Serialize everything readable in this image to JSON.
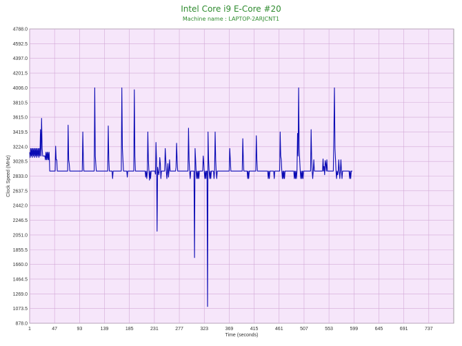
{
  "chart_data": {
    "type": "line",
    "title": "Intel Core i9 E-Core #20",
    "subtitle": "Machine name : LAPTOP-2ARJCNT1",
    "xlabel": "Time (seconds)",
    "ylabel": "Clock Speed (MHz)",
    "xlim": [
      1,
      783
    ],
    "ylim": [
      878.0,
      4788.0
    ],
    "x_ticks": [
      1,
      47,
      93,
      139,
      185,
      231,
      277,
      323,
      369,
      415,
      461,
      507,
      553,
      599,
      645,
      691,
      737
    ],
    "y_ticks": [
      878.0,
      1073.5,
      1269.0,
      1464.5,
      1660.0,
      1855.5,
      2051.0,
      2246.5,
      2442.0,
      2637.5,
      2833.0,
      3028.5,
      3224.0,
      3419.5,
      3615.0,
      3810.5,
      4006.0,
      4201.5,
      4397.0,
      4592.5,
      4788.0
    ],
    "grid": true,
    "colors": {
      "line": "#0a0ab4",
      "plot_background": "#f6e6fa",
      "grid": "#d2a8d6",
      "title": "#2e8b2e"
    },
    "baseline": 2900,
    "series": [
      {
        "values_description_note": "",
        "points": [
          [
            1,
            3150
          ],
          [
            2,
            3080
          ],
          [
            3,
            3200
          ],
          [
            4,
            3100
          ],
          [
            5,
            3200
          ],
          [
            6,
            3080
          ],
          [
            7,
            3200
          ],
          [
            8,
            3100
          ],
          [
            9,
            3200
          ],
          [
            10,
            3080
          ],
          [
            11,
            3200
          ],
          [
            12,
            3100
          ],
          [
            13,
            3200
          ],
          [
            14,
            3080
          ],
          [
            15,
            3200
          ],
          [
            16,
            3100
          ],
          [
            17,
            3200
          ],
          [
            18,
            3080
          ],
          [
            19,
            3200
          ],
          [
            20,
            3100
          ],
          [
            21,
            3450
          ],
          [
            22,
            3100
          ],
          [
            23,
            3600
          ],
          [
            24,
            3200
          ],
          [
            25,
            3100
          ],
          [
            26,
            3100
          ],
          [
            27,
            3100
          ],
          [
            28,
            3100
          ],
          [
            29,
            3100
          ],
          [
            30,
            3050
          ],
          [
            31,
            3150
          ],
          [
            32,
            3050
          ],
          [
            33,
            3150
          ],
          [
            34,
            3050
          ],
          [
            35,
            3150
          ],
          [
            36,
            3050
          ],
          [
            37,
            3150
          ],
          [
            38,
            2900
          ],
          [
            46,
            2900
          ],
          [
            47,
            2900
          ],
          [
            48,
            2900
          ],
          [
            49,
            3230
          ],
          [
            50,
            3050
          ],
          [
            51,
            3050
          ],
          [
            52,
            2900
          ],
          [
            70,
            2900
          ],
          [
            71,
            2900
          ],
          [
            72,
            3510
          ],
          [
            73,
            3050
          ],
          [
            74,
            3000
          ],
          [
            75,
            2900
          ],
          [
            98,
            2900
          ],
          [
            99,
            3420
          ],
          [
            100,
            3050
          ],
          [
            101,
            2900
          ],
          [
            120,
            2900
          ],
          [
            121,
            4006
          ],
          [
            122,
            3100
          ],
          [
            123,
            3000
          ],
          [
            124,
            2900
          ],
          [
            145,
            2900
          ],
          [
            146,
            3500
          ],
          [
            147,
            3050
          ],
          [
            148,
            2900
          ],
          [
            153,
            2900
          ],
          [
            154,
            2800
          ],
          [
            155,
            2900
          ],
          [
            170,
            2900
          ],
          [
            171,
            4006
          ],
          [
            172,
            3200
          ],
          [
            173,
            3050
          ],
          [
            174,
            2900
          ],
          [
            180,
            2900
          ],
          [
            181,
            2820
          ],
          [
            182,
            2900
          ],
          [
            193,
            2900
          ],
          [
            194,
            3980
          ],
          [
            195,
            3100
          ],
          [
            196,
            2900
          ],
          [
            214,
            2900
          ],
          [
            215,
            2820
          ],
          [
            216,
            2900
          ],
          [
            217,
            2800
          ],
          [
            218,
            2900
          ],
          [
            219,
            3420
          ],
          [
            220,
            3050
          ],
          [
            221,
            2900
          ],
          [
            222,
            2780
          ],
          [
            223,
            2900
          ],
          [
            224,
            2800
          ],
          [
            225,
            2900
          ],
          [
            232,
            2900
          ],
          [
            233,
            2860
          ],
          [
            234,
            3280
          ],
          [
            235,
            3050
          ],
          [
            236,
            2100
          ],
          [
            237,
            2950
          ],
          [
            238,
            2900
          ],
          [
            239,
            2850
          ],
          [
            240,
            2900
          ],
          [
            241,
            3080
          ],
          [
            242,
            3000
          ],
          [
            243,
            2800
          ],
          [
            244,
            2900
          ],
          [
            250,
            2900
          ],
          [
            251,
            3200
          ],
          [
            252,
            3050
          ],
          [
            253,
            2900
          ],
          [
            254,
            2800
          ],
          [
            255,
            2900
          ],
          [
            256,
            3000
          ],
          [
            257,
            2820
          ],
          [
            258,
            2900
          ],
          [
            259,
            3050
          ],
          [
            260,
            2900
          ],
          [
            270,
            2900
          ],
          [
            271,
            2950
          ],
          [
            272,
            3270
          ],
          [
            273,
            3050
          ],
          [
            274,
            2900
          ],
          [
            293,
            2900
          ],
          [
            294,
            3470
          ],
          [
            295,
            3050
          ],
          [
            296,
            2900
          ],
          [
            297,
            2800
          ],
          [
            298,
            2900
          ],
          [
            304,
            2900
          ],
          [
            305,
            1750
          ],
          [
            306,
            3200
          ],
          [
            307,
            3050
          ],
          [
            308,
            2900
          ],
          [
            309,
            2800
          ],
          [
            310,
            2900
          ],
          [
            311,
            2800
          ],
          [
            312,
            2900
          ],
          [
            313,
            2800
          ],
          [
            314,
            2900
          ],
          [
            320,
            2900
          ],
          [
            321,
            3100
          ],
          [
            322,
            3020
          ],
          [
            323,
            2900
          ],
          [
            324,
            2800
          ],
          [
            325,
            2900
          ],
          [
            326,
            2800
          ],
          [
            327,
            2900
          ],
          [
            328,
            2900
          ],
          [
            329,
            1100
          ],
          [
            330,
            3420
          ],
          [
            331,
            3050
          ],
          [
            332,
            2900
          ],
          [
            333,
            2800
          ],
          [
            334,
            2900
          ],
          [
            335,
            2800
          ],
          [
            336,
            2900
          ],
          [
            340,
            2900
          ],
          [
            341,
            2800
          ],
          [
            342,
            2900
          ],
          [
            343,
            3420
          ],
          [
            344,
            3050
          ],
          [
            345,
            2900
          ],
          [
            346,
            2800
          ],
          [
            347,
            2900
          ],
          [
            369,
            2900
          ],
          [
            370,
            3200
          ],
          [
            371,
            3050
          ],
          [
            372,
            2900
          ],
          [
            393,
            2900
          ],
          [
            394,
            3330
          ],
          [
            395,
            3050
          ],
          [
            396,
            2900
          ],
          [
            402,
            2900
          ],
          [
            403,
            2800
          ],
          [
            404,
            2900
          ],
          [
            405,
            2800
          ],
          [
            406,
            2900
          ],
          [
            418,
            2900
          ],
          [
            419,
            3370
          ],
          [
            420,
            3050
          ],
          [
            421,
            2900
          ],
          [
            440,
            2900
          ],
          [
            441,
            2800
          ],
          [
            442,
            2900
          ],
          [
            443,
            2800
          ],
          [
            444,
            2900
          ],
          [
            451,
            2900
          ],
          [
            452,
            2800
          ],
          [
            453,
            2900
          ],
          [
            462,
            2900
          ],
          [
            463,
            3420
          ],
          [
            464,
            3100
          ],
          [
            465,
            3050
          ],
          [
            466,
            2900
          ],
          [
            467,
            2800
          ],
          [
            468,
            2900
          ],
          [
            469,
            2800
          ],
          [
            470,
            2900
          ],
          [
            471,
            2800
          ],
          [
            472,
            2900
          ],
          [
            488,
            2900
          ],
          [
            489,
            2800
          ],
          [
            490,
            2900
          ],
          [
            491,
            2800
          ],
          [
            492,
            2900
          ],
          [
            493,
            2800
          ],
          [
            494,
            2900
          ],
          [
            495,
            3400
          ],
          [
            496,
            3100
          ],
          [
            497,
            4006
          ],
          [
            498,
            3200
          ],
          [
            499,
            3050
          ],
          [
            500,
            2900
          ],
          [
            501,
            2800
          ],
          [
            502,
            2900
          ],
          [
            503,
            2800
          ],
          [
            504,
            2900
          ],
          [
            505,
            2800
          ],
          [
            506,
            2900
          ],
          [
            519,
            2900
          ],
          [
            520,
            3450
          ],
          [
            521,
            3050
          ],
          [
            522,
            2900
          ],
          [
            523,
            2800
          ],
          [
            524,
            2900
          ],
          [
            525,
            3050
          ],
          [
            526,
            2900
          ],
          [
            541,
            2900
          ],
          [
            542,
            3060
          ],
          [
            543,
            2900
          ],
          [
            544,
            2960
          ],
          [
            545,
            2850
          ],
          [
            546,
            3040
          ],
          [
            547,
            3000
          ],
          [
            548,
            2900
          ],
          [
            549,
            3050
          ],
          [
            550,
            2900
          ],
          [
            561,
            2900
          ],
          [
            562,
            3400
          ],
          [
            563,
            4006
          ],
          [
            564,
            3200
          ],
          [
            565,
            3050
          ],
          [
            566,
            2900
          ],
          [
            567,
            2800
          ],
          [
            568,
            2900
          ],
          [
            569,
            2850
          ],
          [
            570,
            2900
          ],
          [
            571,
            3050
          ],
          [
            572,
            2900
          ],
          [
            573,
            2800
          ],
          [
            574,
            2900
          ],
          [
            575,
            3050
          ],
          [
            576,
            2900
          ],
          [
            577,
            2800
          ],
          [
            578,
            2900
          ],
          [
            590,
            2900
          ],
          [
            591,
            2800
          ],
          [
            592,
            2900
          ],
          [
            593,
            2800
          ],
          [
            594,
            2900
          ],
          [
            595,
            2900
          ],
          [
            596,
            2900
          ]
        ]
      }
    ]
  }
}
